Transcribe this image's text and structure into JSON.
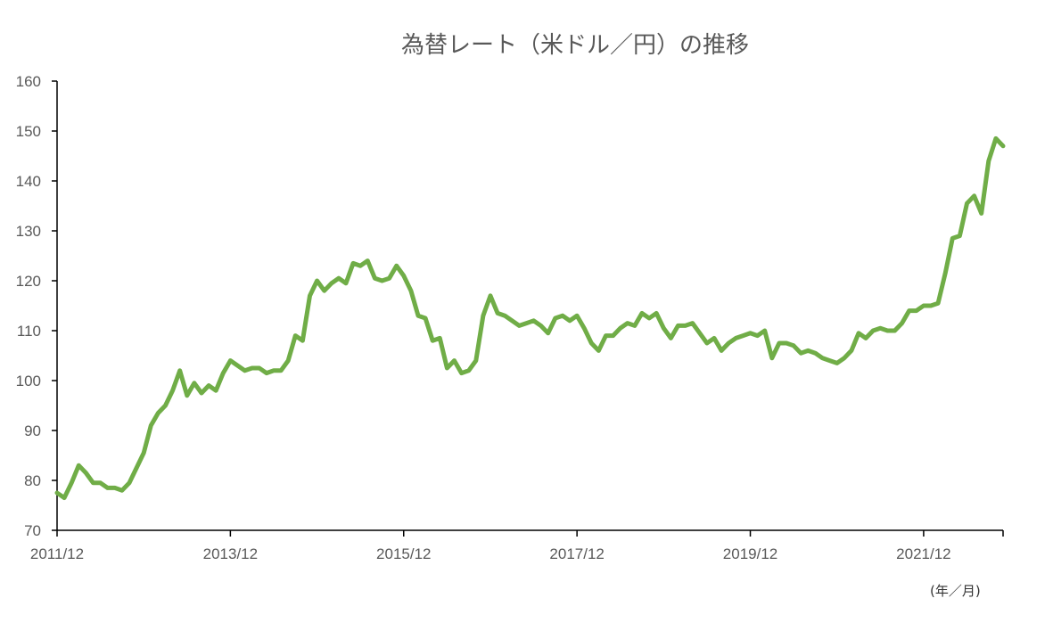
{
  "chart_data": {
    "type": "line",
    "title": "為替レート（米ドル／円）の推移",
    "unit_label": "(年／月)",
    "xlabel": "",
    "ylabel": "",
    "ylim": [
      70,
      160
    ],
    "y_ticks": [
      70,
      80,
      90,
      100,
      110,
      120,
      130,
      140,
      150,
      160
    ],
    "x_tick_labels": [
      "2011/12",
      "2013/12",
      "2015/12",
      "2017/12",
      "2019/12",
      "2021/12"
    ],
    "x_range": [
      "2011/12",
      "2022/11"
    ],
    "grid": false,
    "legend": "none",
    "series": [
      {
        "color": "#70ad47",
        "points": [
          [
            "2011/12",
            77.5
          ],
          [
            "2012/01",
            76.5
          ],
          [
            "2012/02",
            79.5
          ],
          [
            "2012/03",
            83
          ],
          [
            "2012/04",
            81.5
          ],
          [
            "2012/05",
            79.5
          ],
          [
            "2012/06",
            79.5
          ],
          [
            "2012/07",
            78.5
          ],
          [
            "2012/08",
            78.5
          ],
          [
            "2012/09",
            78
          ],
          [
            "2012/10",
            79.5
          ],
          [
            "2012/11",
            82.5
          ],
          [
            "2012/12",
            85.5
          ],
          [
            "2013/01",
            91
          ],
          [
            "2013/02",
            93.5
          ],
          [
            "2013/03",
            95
          ],
          [
            "2013/04",
            98
          ],
          [
            "2013/05",
            102
          ],
          [
            "2013/06",
            97
          ],
          [
            "2013/07",
            99.5
          ],
          [
            "2013/08",
            97.5
          ],
          [
            "2013/09",
            99
          ],
          [
            "2013/10",
            98
          ],
          [
            "2013/11",
            101.5
          ],
          [
            "2013/12",
            104
          ],
          [
            "2014/01",
            103
          ],
          [
            "2014/02",
            102
          ],
          [
            "2014/03",
            102.5
          ],
          [
            "2014/04",
            102.5
          ],
          [
            "2014/05",
            101.5
          ],
          [
            "2014/06",
            102
          ],
          [
            "2014/07",
            102
          ],
          [
            "2014/08",
            104
          ],
          [
            "2014/09",
            109
          ],
          [
            "2014/10",
            108
          ],
          [
            "2014/11",
            117
          ],
          [
            "2014/12",
            120
          ],
          [
            "2015/01",
            118
          ],
          [
            "2015/02",
            119.5
          ],
          [
            "2015/03",
            120.5
          ],
          [
            "2015/04",
            119.5
          ],
          [
            "2015/05",
            123.5
          ],
          [
            "2015/06",
            123
          ],
          [
            "2015/07",
            124
          ],
          [
            "2015/08",
            120.5
          ],
          [
            "2015/09",
            120
          ],
          [
            "2015/10",
            120.5
          ],
          [
            "2015/11",
            123
          ],
          [
            "2015/12",
            121
          ],
          [
            "2016/01",
            118
          ],
          [
            "2016/02",
            113
          ],
          [
            "2016/03",
            112.5
          ],
          [
            "2016/04",
            108
          ],
          [
            "2016/05",
            108.5
          ],
          [
            "2016/06",
            102.5
          ],
          [
            "2016/07",
            104
          ],
          [
            "2016/08",
            101.5
          ],
          [
            "2016/09",
            102
          ],
          [
            "2016/10",
            104
          ],
          [
            "2016/11",
            113
          ],
          [
            "2016/12",
            117
          ],
          [
            "2017/01",
            113.5
          ],
          [
            "2017/02",
            113
          ],
          [
            "2017/03",
            112
          ],
          [
            "2017/04",
            111
          ],
          [
            "2017/05",
            111.5
          ],
          [
            "2017/06",
            112
          ],
          [
            "2017/07",
            111
          ],
          [
            "2017/08",
            109.5
          ],
          [
            "2017/09",
            112.5
          ],
          [
            "2017/10",
            113
          ],
          [
            "2017/11",
            112
          ],
          [
            "2017/12",
            113
          ],
          [
            "2018/01",
            110.5
          ],
          [
            "2018/02",
            107.5
          ],
          [
            "2018/03",
            106
          ],
          [
            "2018/04",
            109
          ],
          [
            "2018/05",
            109
          ],
          [
            "2018/06",
            110.5
          ],
          [
            "2018/07",
            111.5
          ],
          [
            "2018/08",
            111
          ],
          [
            "2018/09",
            113.5
          ],
          [
            "2018/10",
            112.5
          ],
          [
            "2018/11",
            113.5
          ],
          [
            "2018/12",
            110.5
          ],
          [
            "2019/01",
            108.5
          ],
          [
            "2019/02",
            111
          ],
          [
            "2019/03",
            111
          ],
          [
            "2019/04",
            111.5
          ],
          [
            "2019/05",
            109.5
          ],
          [
            "2019/06",
            107.5
          ],
          [
            "2019/07",
            108.5
          ],
          [
            "2019/08",
            106
          ],
          [
            "2019/09",
            107.5
          ],
          [
            "2019/10",
            108.5
          ],
          [
            "2019/11",
            109
          ],
          [
            "2019/12",
            109.5
          ],
          [
            "2020/01",
            109
          ],
          [
            "2020/02",
            110
          ],
          [
            "2020/03",
            104.5
          ],
          [
            "2020/04",
            107.5
          ],
          [
            "2020/05",
            107.5
          ],
          [
            "2020/06",
            107
          ],
          [
            "2020/07",
            105.5
          ],
          [
            "2020/08",
            106
          ],
          [
            "2020/09",
            105.5
          ],
          [
            "2020/10",
            104.5
          ],
          [
            "2020/11",
            104
          ],
          [
            "2020/12",
            103.5
          ],
          [
            "2021/01",
            104.5
          ],
          [
            "2021/02",
            106
          ],
          [
            "2021/03",
            109.5
          ],
          [
            "2021/04",
            108.5
          ],
          [
            "2021/05",
            110
          ],
          [
            "2021/06",
            110.5
          ],
          [
            "2021/07",
            110
          ],
          [
            "2021/08",
            110
          ],
          [
            "2021/09",
            111.5
          ],
          [
            "2021/10",
            114
          ],
          [
            "2021/11",
            114
          ],
          [
            "2021/12",
            115
          ],
          [
            "2022/01",
            115
          ],
          [
            "2022/02",
            115.5
          ],
          [
            "2022/03",
            121.5
          ],
          [
            "2022/04",
            128.5
          ],
          [
            "2022/05",
            129
          ],
          [
            "2022/06",
            135.5
          ],
          [
            "2022/07",
            137
          ],
          [
            "2022/08",
            133.5
          ],
          [
            "2022/09",
            144
          ],
          [
            "2022/10",
            148.5
          ],
          [
            "2022/11",
            147
          ]
        ]
      }
    ]
  }
}
